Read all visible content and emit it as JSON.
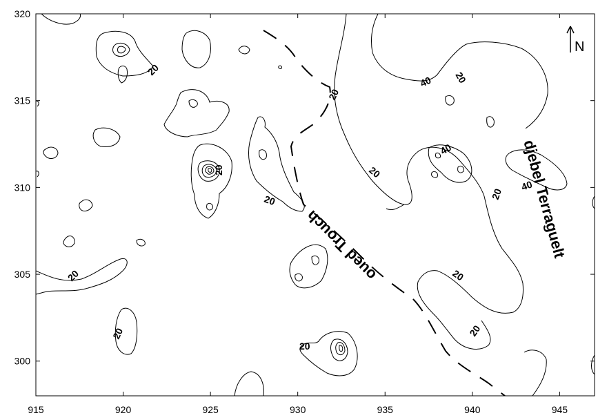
{
  "map": {
    "x_axis": {
      "ticks": [
        "915",
        "920",
        "925",
        "930",
        "935",
        "940",
        "945"
      ]
    },
    "y_axis": {
      "ticks": [
        "300",
        "305",
        "310",
        "315",
        "320"
      ]
    },
    "contour_labels": [
      "20",
      "20",
      "20",
      "20",
      "20",
      "20",
      "20",
      "20",
      "20",
      "20",
      "20",
      "20",
      "40",
      "40",
      "40"
    ],
    "features": {
      "wadi": "oued Trouch",
      "mountain": "djebel Terraguelt"
    },
    "north_arrow": {
      "label": "N",
      "icon": "north-arrow-icon"
    }
  }
}
